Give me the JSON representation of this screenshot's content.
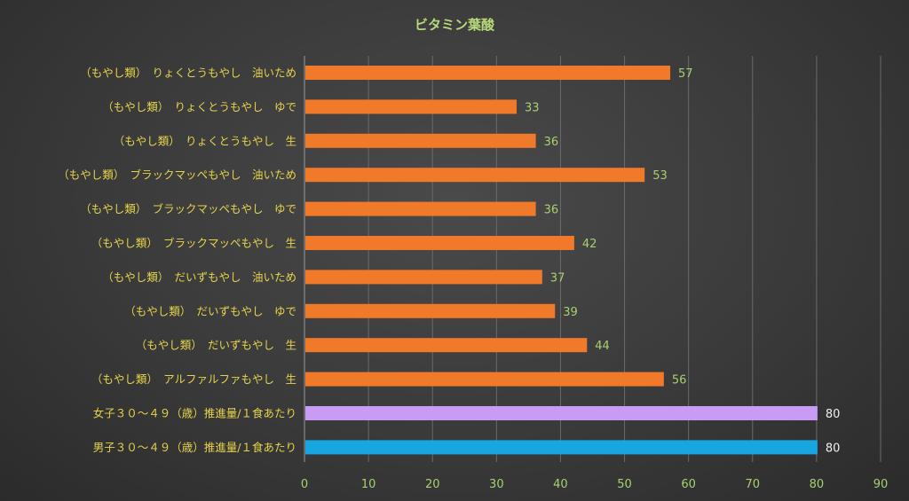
{
  "chart_data": {
    "type": "bar",
    "orientation": "horizontal",
    "title": "ビタミン葉酸",
    "xlim": [
      0,
      90
    ],
    "x_ticks": [
      0,
      10,
      20,
      30,
      40,
      50,
      60,
      70,
      80,
      90
    ],
    "grid": true,
    "categories": [
      "（もやし類）　りょくとうもやし　油いため",
      "（もやし類）　りょくとうもやし　ゆで",
      "（もやし類）　りょくとうもやし　生",
      "（もやし類）　ブラックマッペもやし　油いため",
      "（もやし類）　ブラックマッペもやし　ゆで",
      "（もやし類）　ブラックマッペもやし　生",
      "（もやし類）　だいずもやし　油いため",
      "（もやし類）　だいずもやし　ゆで",
      "（もやし類）　だいずもやし　生",
      "（もやし類）　アルファルファもやし　生",
      "女子３０～４９（歳）推進量/１食あたり",
      "男子３０～４９（歳）推進量/１食あたり"
    ],
    "values": [
      57,
      33,
      36,
      53,
      36,
      42,
      37,
      39,
      44,
      56,
      80,
      80
    ],
    "colors": [
      "#f07a2a",
      "#f07a2a",
      "#f07a2a",
      "#f07a2a",
      "#f07a2a",
      "#f07a2a",
      "#f07a2a",
      "#f07a2a",
      "#f07a2a",
      "#f07a2a",
      "#c89cf5",
      "#17a6e0"
    ],
    "title_color": "#b6d97a",
    "label_color": "#e6d44a",
    "tick_color": "#a8d070"
  }
}
